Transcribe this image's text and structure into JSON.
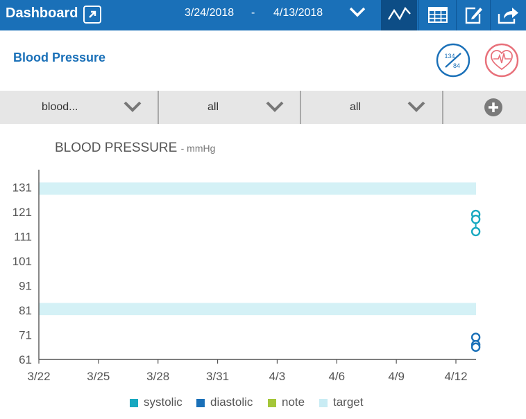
{
  "header": {
    "title": "Dashboard",
    "date_from": "3/24/2018",
    "date_separator": "-",
    "date_to": "4/13/2018",
    "bg_color": "#1a70b8",
    "active_tool_color": "#0d4d86",
    "icons": {
      "external": "external-link-icon",
      "date_dropdown": "chevron-down-icon",
      "chart_view": "line-chart-icon",
      "table_view": "table-icon",
      "edit": "edit-icon",
      "share": "share-icon"
    }
  },
  "page": {
    "title": "Blood Pressure",
    "bp_icon": {
      "name": "blood-pressure-icon",
      "top": "134",
      "bottom": "84"
    },
    "heart_icon": "heart-ecg-icon"
  },
  "filters": [
    {
      "label": "blood..."
    },
    {
      "label": "all"
    },
    {
      "label": "all"
    }
  ],
  "add_icon": "plus-circle-icon",
  "chart_data": {
    "type": "scatter",
    "title": "BLOOD PRESSURE",
    "unit": "- mmHg",
    "xlabel": "",
    "ylabel": "",
    "x_ticks": [
      "3/22",
      "3/25",
      "3/28",
      "3/31",
      "4/3",
      "4/6",
      "4/9",
      "4/12"
    ],
    "x_day_range": [
      0,
      22
    ],
    "y_ticks": [
      61,
      71,
      81,
      91,
      101,
      111,
      121,
      131
    ],
    "ylim": [
      61,
      138
    ],
    "grid": false,
    "legend_position": "bottom-center",
    "target_bands": [
      {
        "name": "target",
        "range": [
          128,
          133
        ]
      },
      {
        "name": "target",
        "range": [
          79,
          84
        ]
      }
    ],
    "series": [
      {
        "name": "systolic",
        "color": "#17a8c0",
        "points": [
          {
            "x": "4/13",
            "y": 120
          },
          {
            "x": "4/13",
            "y": 118
          },
          {
            "x": "4/13",
            "y": 113
          }
        ]
      },
      {
        "name": "diastolic",
        "color": "#1a70b8",
        "points": [
          {
            "x": "4/13",
            "y": 70
          },
          {
            "x": "4/13",
            "y": 67
          },
          {
            "x": "4/13",
            "y": 66
          }
        ]
      }
    ],
    "legend": [
      {
        "name": "systolic",
        "color": "#17a8c0"
      },
      {
        "name": "diastolic",
        "color": "#1a70b8"
      },
      {
        "name": "note",
        "color": "#a4c639"
      },
      {
        "name": "target",
        "color": "#c9ecf4"
      }
    ]
  }
}
